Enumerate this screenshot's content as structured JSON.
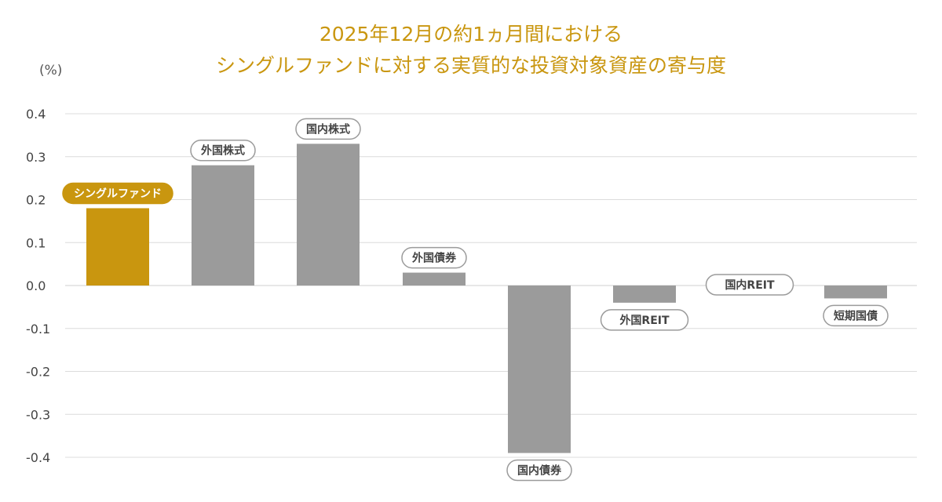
{
  "chart_data": {
    "type": "bar",
    "title": [
      "2025年12月の約1ヵ月間における",
      "シングルファンドに対する実質的な投資対象資産の寄与度"
    ],
    "ylabel": "(%)",
    "ylim": [
      -0.4,
      0.4
    ],
    "yticks": [
      0.4,
      0.3,
      0.2,
      0.1,
      0.0,
      -0.1,
      -0.2,
      -0.3,
      -0.4
    ],
    "ytick_labels": [
      "0.4",
      "0.3",
      "0.2",
      "0.1",
      "0.0",
      "-0.1",
      "-0.2",
      "-0.3",
      "-0.4"
    ],
    "grid": true,
    "categories": [
      "シングルファンド",
      "外国株式",
      "国内株式",
      "外国債券",
      "国内債券",
      "外国REIT",
      "国内REIT",
      "短期国債"
    ],
    "values": [
      0.18,
      0.28,
      0.33,
      0.03,
      -0.39,
      -0.04,
      0.0,
      -0.03
    ],
    "highlight_index": 0
  },
  "colors": {
    "highlight": "#C9960F",
    "bar": "#9B9B9B",
    "title": "#C9960F",
    "pill_border": "#9B9B9B",
    "pill_text": "#444444",
    "highlight_pill_text": "#ffffff"
  }
}
